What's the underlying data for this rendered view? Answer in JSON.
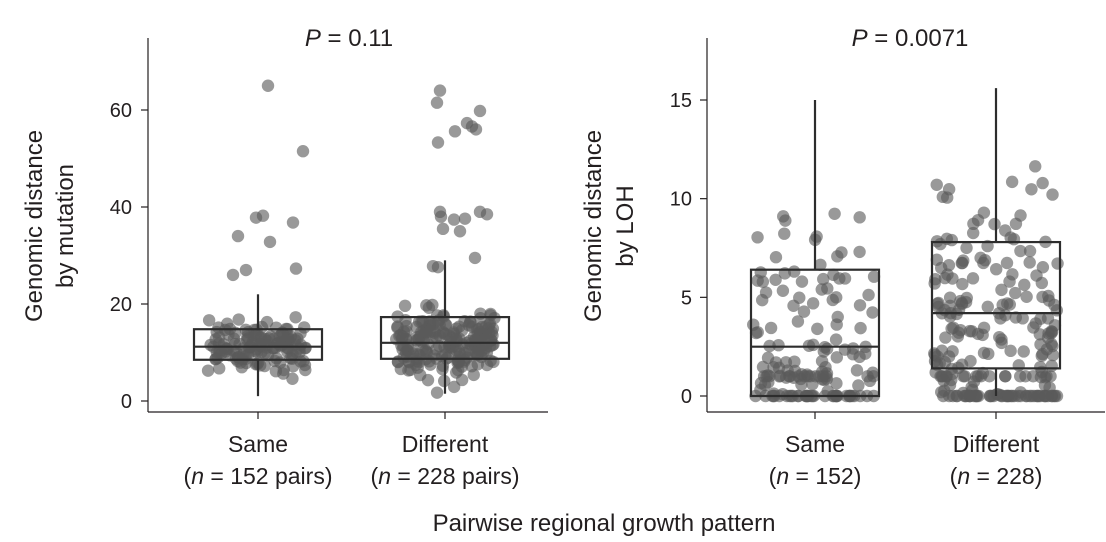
{
  "figure": {
    "shared_xlabel": "Pairwise regional growth pattern"
  },
  "chart_data": [
    {
      "type": "scatter",
      "subtype": "box-and-strip",
      "title_prefix": "P",
      "title_value": " = 0.11",
      "ylabel_line1": "Genomic distance",
      "ylabel_line2": "by mutation",
      "ylim": [
        -2,
        74
      ],
      "yticks": [
        0,
        20,
        40,
        60
      ],
      "grid": false,
      "categories": [
        {
          "name": "Same",
          "n_prefix": "(",
          "n_var": "n",
          "n_rest": " = 152 pairs)"
        },
        {
          "name": "Different",
          "n_prefix": "(",
          "n_var": "n",
          "n_rest": " = 228 pairs)"
        }
      ],
      "boxes": [
        {
          "q1": 8.5,
          "median": 11.2,
          "q3": 14.8,
          "whisker_low": 1,
          "whisker_high": 22
        },
        {
          "q1": 8.7,
          "median": 12.0,
          "q3": 17.3,
          "whisker_low": 1.5,
          "whisker_high": 29
        }
      ],
      "outliers": [
        {
          "group": 0,
          "jitter": 0.1,
          "value": 65
        },
        {
          "group": 0,
          "jitter": 0.45,
          "value": 51.5
        },
        {
          "group": 0,
          "jitter": 0.05,
          "value": 38.2
        },
        {
          "group": 0,
          "jitter": -0.02,
          "value": 37.8
        },
        {
          "group": 0,
          "jitter": 0.35,
          "value": 36.8
        },
        {
          "group": 0,
          "jitter": -0.2,
          "value": 34.0
        },
        {
          "group": 0,
          "jitter": 0.12,
          "value": 32.8
        },
        {
          "group": 0,
          "jitter": 0.38,
          "value": 27.3
        },
        {
          "group": 0,
          "jitter": -0.12,
          "value": 27.0
        },
        {
          "group": 0,
          "jitter": -0.25,
          "value": 26.0
        },
        {
          "group": 1,
          "jitter": -0.05,
          "value": 64.0
        },
        {
          "group": 1,
          "jitter": -0.08,
          "value": 61.5
        },
        {
          "group": 1,
          "jitter": 0.35,
          "value": 59.8
        },
        {
          "group": 1,
          "jitter": 0.22,
          "value": 57.3
        },
        {
          "group": 1,
          "jitter": 0.27,
          "value": 56.6
        },
        {
          "group": 1,
          "jitter": 0.31,
          "value": 56.0
        },
        {
          "group": 1,
          "jitter": 0.1,
          "value": 55.6
        },
        {
          "group": 1,
          "jitter": -0.07,
          "value": 53.3
        },
        {
          "group": 1,
          "jitter": -0.05,
          "value": 39.0
        },
        {
          "group": 1,
          "jitter": 0.35,
          "value": 39.0
        },
        {
          "group": 1,
          "jitter": 0.42,
          "value": 38.5
        },
        {
          "group": 1,
          "jitter": -0.04,
          "value": 38.0
        },
        {
          "group": 1,
          "jitter": 0.2,
          "value": 37.6
        },
        {
          "group": 1,
          "jitter": 0.09,
          "value": 37.4
        },
        {
          "group": 1,
          "jitter": 0.15,
          "value": 35.0
        },
        {
          "group": 1,
          "jitter": -0.02,
          "value": 35.5
        },
        {
          "group": 1,
          "jitter": 0.3,
          "value": 29.5
        },
        {
          "group": 1,
          "jitter": -0.12,
          "value": 27.8
        },
        {
          "group": 1,
          "jitter": -0.07,
          "value": 27.6
        }
      ],
      "n_points": [
        152,
        228
      ]
    },
    {
      "type": "scatter",
      "subtype": "box-and-strip",
      "title_prefix": "P",
      "title_value": " = 0.0071",
      "ylabel_line1": "Genomic distance",
      "ylabel_line2": "by LOH",
      "ylim": [
        -0.4,
        18
      ],
      "yticks": [
        0,
        5,
        10,
        15
      ],
      "grid": false,
      "categories": [
        {
          "name": "Same",
          "n_prefix": "(",
          "n_var": "n",
          "n_rest": " = 152)"
        },
        {
          "name": "Different",
          "n_prefix": "(",
          "n_var": "n",
          "n_rest": " = 228)"
        }
      ],
      "boxes": [
        {
          "q1": 0,
          "median": 2.5,
          "q3": 6.4,
          "whisker_low": 0,
          "whisker_high": 15
        },
        {
          "q1": 1.4,
          "median": 4.2,
          "q3": 7.8,
          "whisker_low": 0,
          "whisker_high": 15.6
        }
      ],
      "outliers": [],
      "n_points": [
        152,
        228
      ]
    }
  ]
}
